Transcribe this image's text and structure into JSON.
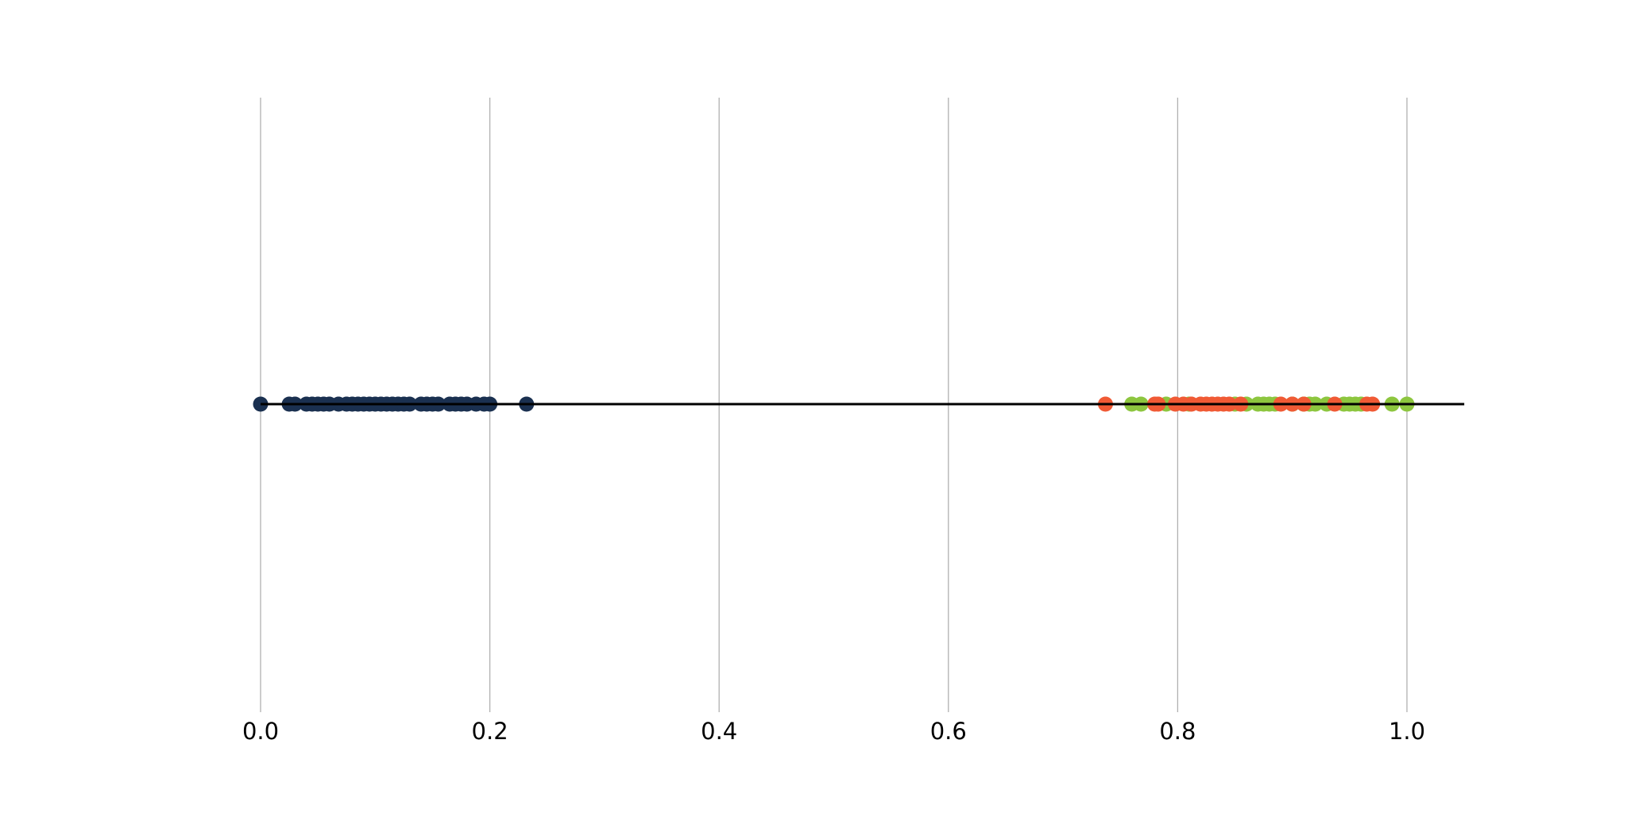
{
  "chart_data": {
    "type": "scatter",
    "title": "",
    "xlabel": "",
    "ylabel": "",
    "xlim": [
      0.0,
      1.05
    ],
    "grid": "vertical",
    "x_ticks": [
      "0.0",
      "0.2",
      "0.4",
      "0.6",
      "0.8",
      "1.0"
    ],
    "series": [
      {
        "color": "#1a3050",
        "x": [
          0.0,
          0.025,
          0.03,
          0.04,
          0.045,
          0.05,
          0.055,
          0.06,
          0.068,
          0.075,
          0.08,
          0.085,
          0.09,
          0.095,
          0.1,
          0.105,
          0.11,
          0.115,
          0.12,
          0.125,
          0.13,
          0.14,
          0.145,
          0.15,
          0.155,
          0.165,
          0.17,
          0.175,
          0.18,
          0.188,
          0.195,
          0.2,
          0.232
        ]
      },
      {
        "color": "#8dc63f",
        "x": [
          0.76,
          0.768,
          0.79,
          0.81,
          0.85,
          0.86,
          0.87,
          0.875,
          0.88,
          0.885,
          0.9,
          0.91,
          0.915,
          0.92,
          0.93,
          0.945,
          0.95,
          0.955,
          0.96,
          0.987,
          1.0
        ]
      },
      {
        "color": "#f05a35",
        "x": [
          0.737,
          0.78,
          0.783,
          0.798,
          0.805,
          0.812,
          0.82,
          0.825,
          0.83,
          0.835,
          0.84,
          0.845,
          0.855,
          0.89,
          0.9,
          0.91,
          0.937,
          0.965,
          0.97
        ]
      }
    ]
  }
}
